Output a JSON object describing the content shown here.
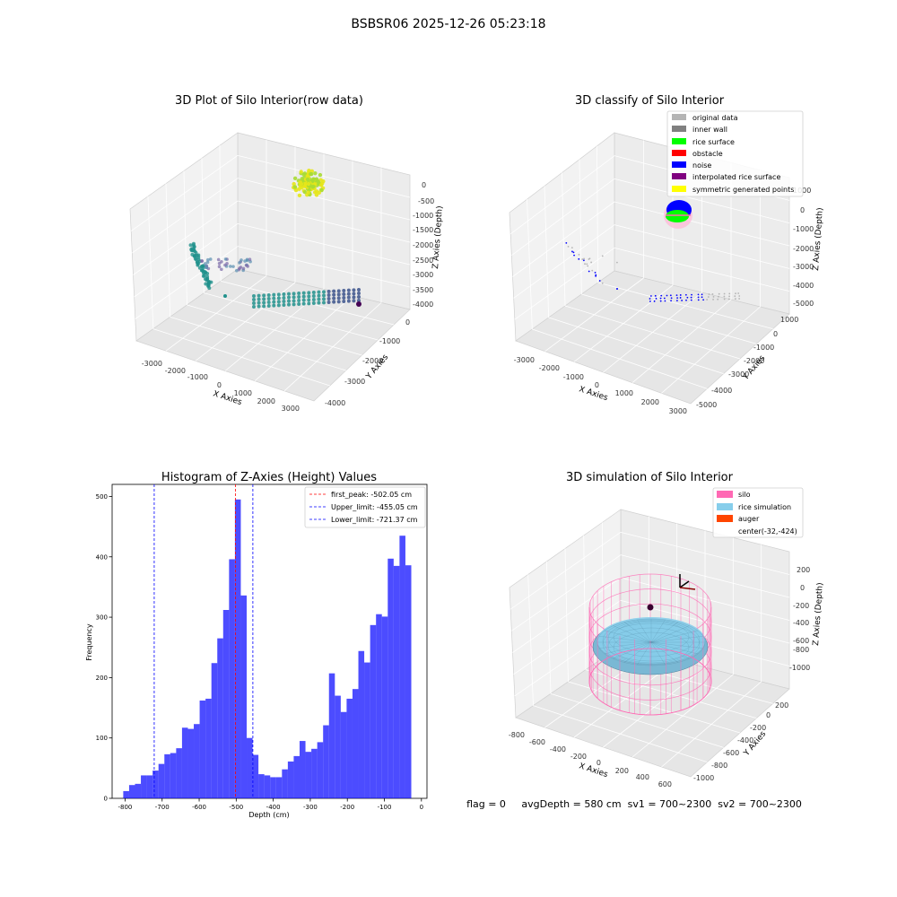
{
  "suptitle": "BSBSR06 2025-12-26 05:23:18",
  "status_line": "flag = 0     avgDepth = 580 cm  sv1 = 700~2300  sv2 = 700~2300",
  "panels": {
    "raw": {
      "title": "3D Plot of Silo Interior(row data)",
      "xlabel": "X Axies",
      "ylabel": "Y Axies",
      "zlabel": "Z Axies (Depth)",
      "x_ticks": [
        "-3000",
        "-2000",
        "-1000",
        "0",
        "1000",
        "2000",
        "3000"
      ],
      "y_ticks": [
        "0",
        "-1000",
        "-2000",
        "-3000",
        "-4000"
      ],
      "z_ticks": [
        "0",
        "-500",
        "-1000",
        "-1500",
        "-2000",
        "-2500",
        "-3000",
        "-3500",
        "-4000"
      ]
    },
    "classify": {
      "title": "3D classify of Silo Interior",
      "xlabel": "X Axies",
      "ylabel": "Y Axies",
      "zlabel": "Z Axies (Depth)",
      "x_ticks": [
        "-3000",
        "-2000",
        "-1000",
        "0",
        "1000",
        "2000",
        "3000"
      ],
      "y_ticks": [
        "1000",
        "0",
        "-1000",
        "-2000",
        "-3000",
        "-4000",
        "-5000"
      ],
      "z_ticks": [
        "1000",
        "0",
        "-1000",
        "-2000",
        "-3000",
        "-4000",
        "-5000"
      ],
      "legend": [
        {
          "label": "original data",
          "color": "#b4b4b4"
        },
        {
          "label": "inner wall",
          "color": "#808080"
        },
        {
          "label": "rice surface",
          "color": "#00ff00"
        },
        {
          "label": "obstacle",
          "color": "#ff0000"
        },
        {
          "label": "noise",
          "color": "#0000ff"
        },
        {
          "label": "interpolated rice surface",
          "color": "#800080"
        },
        {
          "label": "symmetric generated points",
          "color": "#ffff00"
        }
      ]
    },
    "simulation": {
      "title": "3D simulation of Silo Interior",
      "xlabel": "X Axies",
      "ylabel": "Y Axies",
      "zlabel": "Z Axies (Depth)",
      "x_ticks": [
        "-800",
        "-600",
        "-400",
        "-200",
        "0",
        "200",
        "400",
        "600"
      ],
      "y_ticks": [
        "200",
        "0",
        "-200",
        "-400",
        "-600",
        "-800",
        "-1000"
      ],
      "z_ticks": [
        "200",
        "0",
        "-200",
        "-400",
        "-600",
        "-800",
        "-1000"
      ],
      "legend": [
        {
          "label": "silo",
          "color": "#ff69b4"
        },
        {
          "label": "rice simulation",
          "color": "#87ceeb"
        },
        {
          "label": "auger",
          "color": "#ff4500"
        },
        {
          "label": "center(-32,-424)",
          "color": ""
        }
      ]
    }
  },
  "chart_data": {
    "type": "bar",
    "title": "Histogram of Z-Axies (Height) Values",
    "xlabel": "Depth (cm)",
    "ylabel": "Frequency",
    "xlim": [
      -835,
      15
    ],
    "ylim": [
      0,
      520
    ],
    "x_ticks": [
      -800,
      -700,
      -600,
      -500,
      -400,
      -300,
      -200,
      -100,
      0
    ],
    "y_ticks": [
      0,
      100,
      200,
      300,
      400,
      500
    ],
    "bar_color": "#0000ff",
    "bin_start": -805,
    "bin_width": 15.87,
    "values": [
      12,
      22,
      24,
      38,
      38,
      46,
      57,
      73,
      75,
      83,
      117,
      115,
      123,
      162,
      165,
      224,
      265,
      312,
      396,
      495,
      336,
      100,
      72,
      40,
      38,
      35,
      35,
      48,
      61,
      70,
      95,
      77,
      82,
      93,
      121,
      207,
      170,
      143,
      165,
      181,
      244,
      225,
      287,
      305,
      301,
      397,
      385,
      435,
      386
    ],
    "vlines": [
      {
        "label": "first_peak: -502.05 cm",
        "x": -502.05,
        "color": "#ff0000"
      },
      {
        "label": "Upper_limit: -455.05 cm",
        "x": -455.05,
        "color": "#0000ff"
      },
      {
        "label": "Lower_limit: -721.37 cm",
        "x": -721.37,
        "color": "#0000ff"
      }
    ],
    "legend_position": "top-right"
  }
}
